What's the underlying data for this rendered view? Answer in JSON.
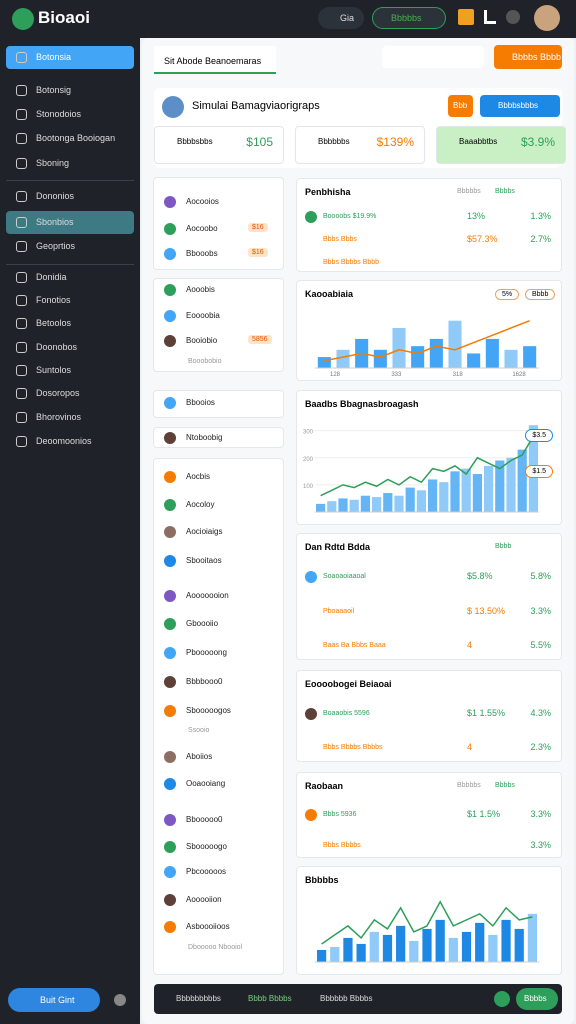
{
  "header": {
    "logo": "Bioaoi",
    "buttons": [
      "Gia",
      "Bbbbbs"
    ]
  },
  "sidebar": {
    "items": [
      "Botonsia",
      "Botonsig",
      "Stonodoios",
      "Bootonga Booiogan",
      "Sboning",
      "Dononios",
      "Sbonbios",
      "Geoprtios",
      "Donidia",
      "Fonotios",
      "Betoolos",
      "Doonobos",
      "Suntolos",
      "Dosoropos",
      "Bhorovinos",
      "Deoomoonios"
    ],
    "footer_button": "Buit Gint"
  },
  "main": {
    "tab": "Sit Abode Beanoemaras",
    "action": "Bbbbs Bbbb",
    "profile": {
      "name": "Simulai Bamagviaorigraps",
      "button1": "Bbb",
      "button2": "Bbbbsbbbs"
    },
    "stats": [
      {
        "label": "Bbbbsbbs",
        "value": "$105"
      },
      {
        "label": "Bbbbbbs",
        "value": "$139%"
      },
      {
        "label": "Baaabbtbs",
        "value": "$3.9%"
      }
    ],
    "list_groups": [
      [
        {
          "label": "Aocooios"
        },
        {
          "label": "Aocoobo",
          "badge": "$16"
        },
        {
          "label": "Bbooobs",
          "badge": "$16"
        }
      ],
      [
        {
          "label": "Aooobis"
        },
        {
          "label": "Eoooobia"
        },
        {
          "label": "Booiobio",
          "badge": "5856"
        },
        {
          "label": "Booobobio"
        }
      ],
      [
        {
          "label": "Bbooios"
        }
      ],
      [
        {
          "label": "Ntoboobig"
        }
      ],
      [
        {
          "label": "Aocbis"
        },
        {
          "label": "Aocoloy"
        },
        {
          "label": "Aocioiaigs"
        },
        {
          "label": "Sbooitaos"
        },
        {
          "label": "Aooooooion"
        },
        {
          "label": "Gboooiio"
        },
        {
          "label": "Pbooooong"
        },
        {
          "label": "Bbbbooo0"
        },
        {
          "label": "Sbooooogos"
        },
        {
          "label": "Ssooio"
        },
        {
          "label": "Aboiios"
        },
        {
          "label": "Ooaooiang"
        },
        {
          "label": "Bbooooo0"
        },
        {
          "label": "Sbooooogo"
        },
        {
          "label": "Pbcooooos"
        },
        {
          "label": "Aooooiion"
        },
        {
          "label": "Asboooiioos"
        },
        {
          "label": "Dbooooo Nbooiol"
        }
      ]
    ],
    "cards": [
      {
        "title": "Penbhisha",
        "cols": [
          "Bbbbbs",
          "Bbbbs"
        ],
        "rows": [
          {
            "label": "Boooobs $19.9%",
            "a": "13%",
            "b": "1.3%"
          },
          {
            "label": "Bbbs Bbbs",
            "a": "$57.3%",
            "b": "2.7%"
          },
          {
            "label": "Bbbs Bbbbs Bbbb",
            "a": "",
            "b": ""
          }
        ]
      },
      {
        "title": "Dan Rdtd Bdda",
        "cols": [
          "",
          "Bbbb"
        ],
        "rows": [
          {
            "label": "Soaoaoiaaoal",
            "a": "$5.8%",
            "b": "5.8%"
          },
          {
            "label": "Pboaaaoil",
            "a": "$ 13.50%",
            "b": "3.3%"
          },
          {
            "label": "Baas Ba Bbbs Baaa",
            "a": "4",
            "b": "5.5%"
          }
        ]
      },
      {
        "title": "Eoooobogei Beiaoai",
        "cols": [
          "",
          ""
        ],
        "rows": [
          {
            "label": "Boaaobis 5596",
            "a": "$1 1.55%",
            "b": "4.3%"
          },
          {
            "label": "Bbbs Bbbbs Bbbbs",
            "a": "4",
            "b": "2.3%"
          }
        ]
      },
      {
        "title": "Raobaan",
        "cols": [
          "Bbbbbs",
          "Bbbbs"
        ],
        "rows": [
          {
            "label": "Bbbs 5936",
            "a": "$1 1.5%",
            "b": "3.3%"
          },
          {
            "label": "Bbbs Bbbbs",
            "a": "",
            "b": "3.3%"
          }
        ]
      }
    ],
    "charts": [
      {
        "type": "bar",
        "title": "Kaooabiaia",
        "pills": [
          "5%",
          "Bbbb"
        ],
        "categories": [
          "128",
          "333",
          "318",
          "1628"
        ],
        "values": [
          3,
          5,
          8,
          5,
          11,
          6,
          8,
          13,
          4,
          8,
          5,
          6
        ],
        "line": [
          2,
          3,
          4,
          3,
          5,
          4,
          6,
          5,
          7,
          9,
          11,
          13
        ],
        "ylim": [
          0,
          16
        ],
        "color": "#42a5f5",
        "line_color": "#f57c00"
      },
      {
        "type": "area",
        "title": "Baadbs Bbagnasbroagash",
        "pills": [
          "$3.5",
          "$1.5"
        ],
        "yticks": [
          300,
          200,
          100
        ],
        "ylim": [
          0,
          340
        ],
        "values": [
          30,
          40,
          50,
          45,
          60,
          55,
          70,
          60,
          90,
          80,
          120,
          110,
          150,
          160,
          140,
          170,
          190,
          200,
          230,
          320
        ],
        "line": [
          60,
          80,
          100,
          90,
          110,
          95,
          120,
          100,
          130,
          110,
          160,
          150,
          170,
          140,
          200,
          180,
          160,
          190,
          210,
          280
        ],
        "color": "#64b5f6",
        "line_color": "#2e9e5b"
      },
      {
        "type": "bar",
        "title": "Bbbbbs",
        "pills": [],
        "values": [
          20,
          25,
          40,
          30,
          50,
          45,
          60,
          35,
          55,
          70,
          40,
          50,
          65,
          45,
          70,
          55,
          80
        ],
        "line": [
          30,
          45,
          60,
          40,
          70,
          55,
          90,
          50,
          60,
          100,
          60,
          70,
          80,
          60,
          90,
          70,
          75
        ],
        "ylim": [
          0,
          110
        ],
        "color": "#1e88e5",
        "line_color": "#2e9e5b"
      }
    ],
    "bottom_bar": {
      "items": [
        "Bbbbbbbbbs",
        "Bbbb Bbbbs",
        "Bbbbbb Bbbbs"
      ],
      "button": "Bbbbs"
    }
  }
}
